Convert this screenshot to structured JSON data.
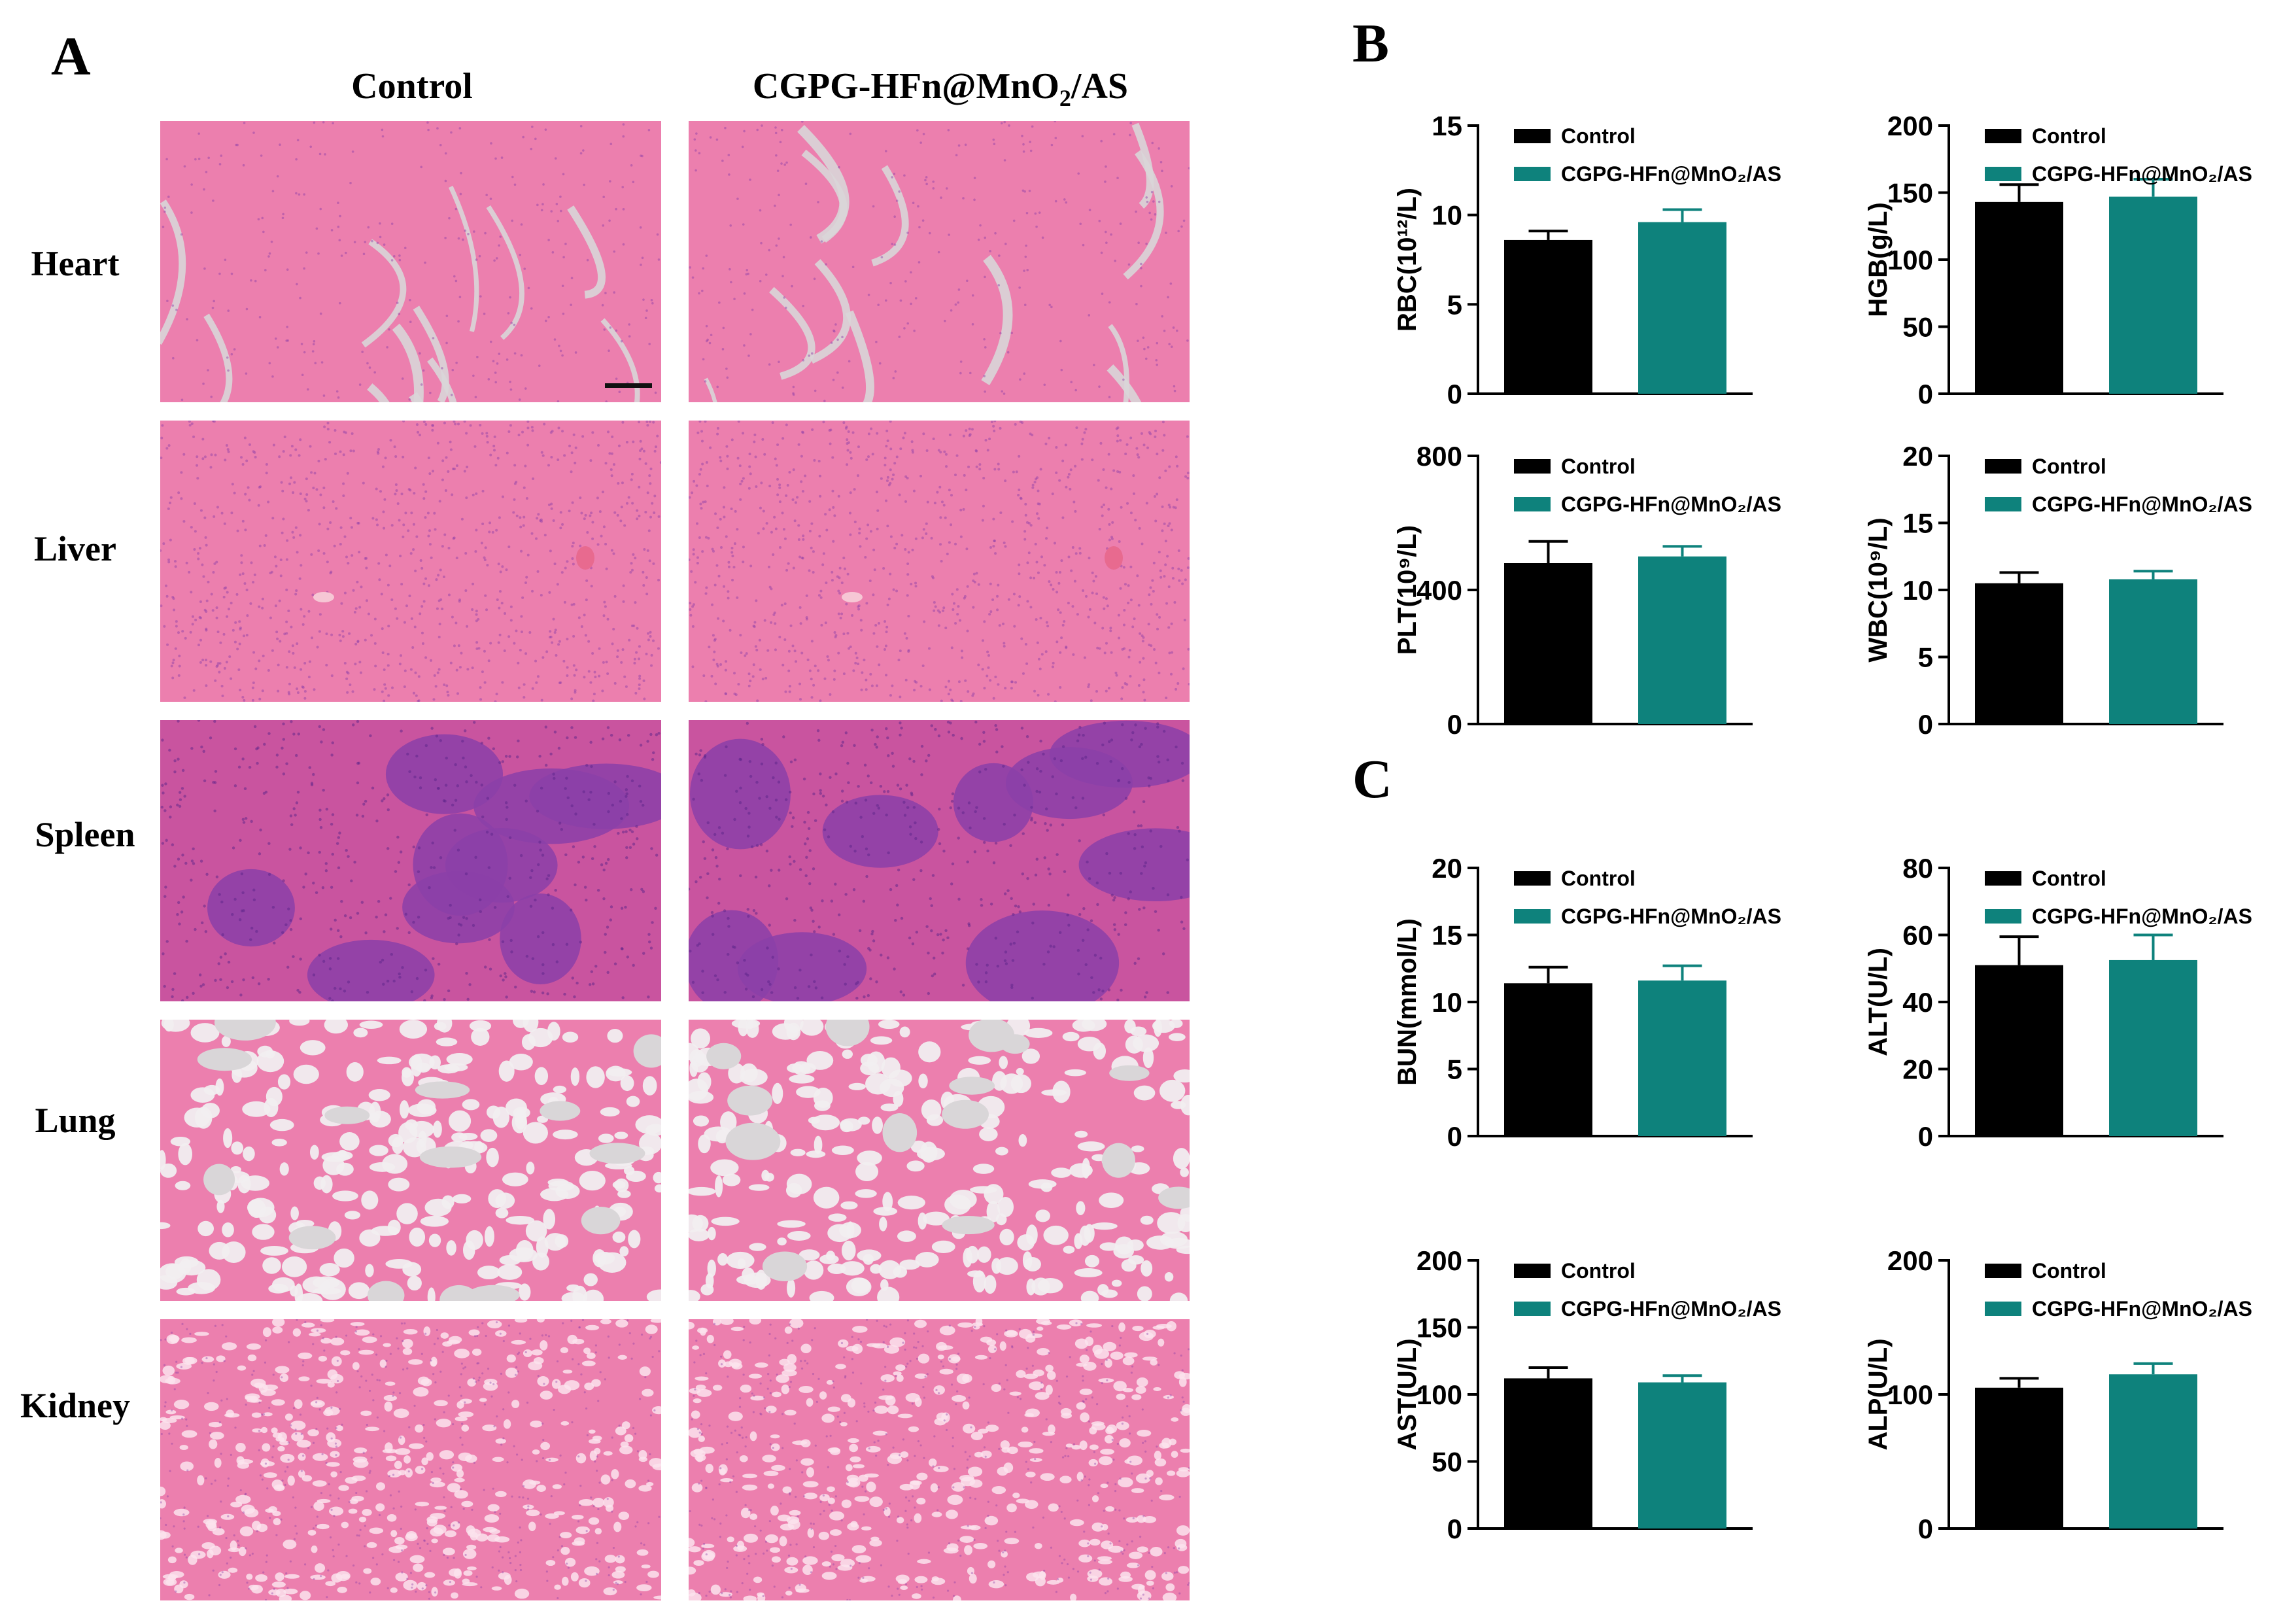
{
  "panel_labels": {
    "a": "A",
    "b": "B",
    "c": "C"
  },
  "histology": {
    "columns": [
      "Control",
      "CGPG-HFn@MnO2/AS"
    ],
    "rows": [
      "Heart",
      "Liver",
      "Spleen",
      "Lung",
      "Kidney"
    ]
  },
  "colors": {
    "control": "#000000",
    "treated": "#0e827c",
    "tissue_pink": "#ec7fae",
    "tissue_dark": "#8b3fa8",
    "background_gap": "#d9d6d8"
  },
  "chart_data": [
    {
      "id": "rbc",
      "type": "bar",
      "ylabel": "RBC(10¹²/L)",
      "ylim": [
        0,
        15
      ],
      "yticks": [
        0,
        5,
        10,
        15
      ],
      "categories": [
        "Control",
        "CGPG-HFn@MnO₂/AS"
      ],
      "values": [
        8.6,
        9.6
      ],
      "errors": [
        0.5,
        0.7
      ],
      "legend": [
        "Control",
        "CGPG-HFn@MnO₂/AS"
      ],
      "legend_position": "top-right"
    },
    {
      "id": "hgb",
      "type": "bar",
      "ylabel": "HGB(g/L)",
      "ylim": [
        0,
        200
      ],
      "yticks": [
        0,
        50,
        100,
        150,
        200
      ],
      "categories": [
        "Control",
        "CGPG-HFn@MnO₂/AS"
      ],
      "values": [
        143,
        147
      ],
      "errors": [
        13,
        13
      ],
      "legend": [
        "Control",
        "CGPG-HFn@MnO₂/AS"
      ],
      "legend_position": "top-right"
    },
    {
      "id": "plt",
      "type": "bar",
      "ylabel": "PLT(10⁹/L)",
      "ylim": [
        0,
        800
      ],
      "yticks": [
        0,
        400,
        800
      ],
      "categories": [
        "Control",
        "CGPG-HFn@MnO₂/AS"
      ],
      "values": [
        480,
        500
      ],
      "errors": [
        65,
        30
      ],
      "legend": [
        "Control",
        "CGPG-HFn@MnO₂/AS"
      ],
      "legend_position": "top-right"
    },
    {
      "id": "wbc",
      "type": "bar",
      "ylabel": "WBC(10⁹/L)",
      "ylim": [
        0,
        20
      ],
      "yticks": [
        0,
        5,
        10,
        15,
        20
      ],
      "categories": [
        "Control",
        "CGPG-HFn@MnO₂/AS"
      ],
      "values": [
        10.5,
        10.8
      ],
      "errors": [
        0.8,
        0.6
      ],
      "legend": [
        "Control",
        "CGPG-HFn@MnO₂/AS"
      ],
      "legend_position": "top-right"
    },
    {
      "id": "bun",
      "type": "bar",
      "ylabel": "BUN(mmol/L)",
      "ylim": [
        0,
        20
      ],
      "yticks": [
        0,
        5,
        10,
        15,
        20
      ],
      "categories": [
        "Control",
        "CGPG-HFn@MnO₂/AS"
      ],
      "values": [
        11.4,
        11.6
      ],
      "errors": [
        1.2,
        1.1
      ],
      "legend": [
        "Control",
        "CGPG-HFn@MnO₂/AS"
      ],
      "legend_position": "top-right"
    },
    {
      "id": "alt",
      "type": "bar",
      "ylabel": "ALT(U/L)",
      "ylim": [
        0,
        80
      ],
      "yticks": [
        0,
        20,
        40,
        60,
        80
      ],
      "categories": [
        "Control",
        "CGPG-HFn@MnO₂/AS"
      ],
      "values": [
        51,
        52.5
      ],
      "errors": [
        8.5,
        7.5
      ],
      "legend": [
        "Control",
        "CGPG-HFn@MnO₂/AS"
      ],
      "legend_position": "top-right"
    },
    {
      "id": "ast",
      "type": "bar",
      "ylabel": "AST(U/L)",
      "ylim": [
        0,
        200
      ],
      "yticks": [
        0,
        50,
        100,
        150,
        200
      ],
      "categories": [
        "Control",
        "CGPG-HFn@MnO₂/AS"
      ],
      "values": [
        112,
        109
      ],
      "errors": [
        8,
        5
      ],
      "legend": [
        "Control",
        "CGPG-HFn@MnO₂/AS"
      ],
      "legend_position": "top-right"
    },
    {
      "id": "alp",
      "type": "bar",
      "ylabel": "ALP(U/L)",
      "ylim": [
        0,
        200
      ],
      "yticks": [
        0,
        100,
        200
      ],
      "categories": [
        "Control",
        "CGPG-HFn@MnO₂/AS"
      ],
      "values": [
        105,
        115
      ],
      "errors": [
        7,
        8
      ],
      "legend": [
        "Control",
        "CGPG-HFn@MnO₂/AS"
      ],
      "legend_position": "top-right"
    }
  ]
}
